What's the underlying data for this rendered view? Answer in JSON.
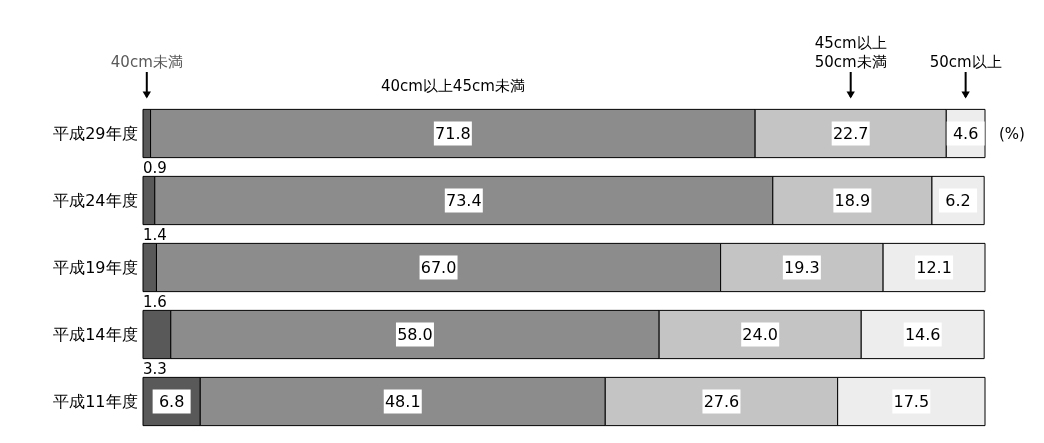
{
  "chart_data": {
    "type": "bar",
    "orientation": "horizontal",
    "stacked": true,
    "categories": [
      "平成29年度",
      "平成24年度",
      "平成19年度",
      "平成14年度",
      "平成11年度"
    ],
    "series": [
      {
        "name": "40cm未満",
        "color": "#595959",
        "values": [
          0.9,
          1.4,
          1.6,
          3.3,
          6.8
        ],
        "value_labels": [
          "0.9",
          "1.4",
          "1.6",
          "3.3",
          "6.8"
        ]
      },
      {
        "name": "40cm以上45cm未満",
        "color": "#8c8c8c",
        "values": [
          71.8,
          73.4,
          67.0,
          58.0,
          48.1
        ],
        "value_labels": [
          "71.8",
          "73.4",
          "67.0",
          "58.0",
          "48.1"
        ]
      },
      {
        "name": "45cm以上\n50cm未満",
        "color": "#c4c4c4",
        "values": [
          22.7,
          18.9,
          19.3,
          24.0,
          27.6
        ],
        "value_labels": [
          "22.7",
          "18.9",
          "19.3",
          "24.0",
          "27.6"
        ]
      },
      {
        "name": "50cm以上",
        "color": "#ededed",
        "values": [
          4.6,
          6.2,
          12.1,
          14.6,
          17.5
        ],
        "value_labels": [
          "4.6",
          "6.2",
          "12.1",
          "14.6",
          "17.5"
        ]
      }
    ],
    "annotations": [
      "(%)"
    ]
  }
}
